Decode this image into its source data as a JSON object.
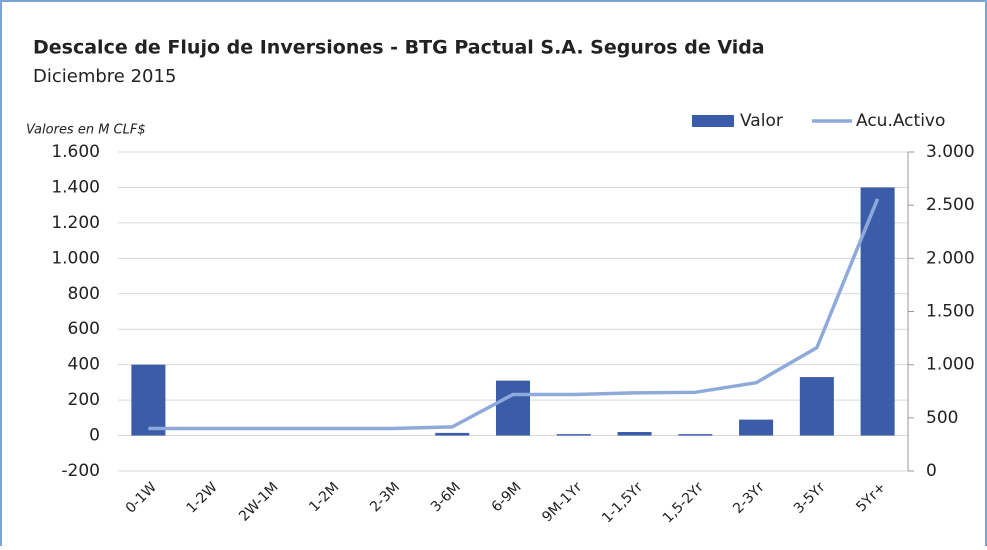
{
  "chart_data": {
    "type": "bar",
    "title": "Descalce de Flujo de Inversiones  - BTG Pactual S.A. Seguros de Vida",
    "subtitle": "Diciembre 2015",
    "y_axis_label": "Valores en M CLF$",
    "categories": [
      "0-1W",
      "1-2W",
      "2W-1M",
      "1-2M",
      "2-3M",
      "3-6M",
      "6-9M",
      "9M-1Yr",
      "1-1,5Yr",
      "1,5-2Yr",
      "2-3Yr",
      "3-5Yr",
      "5Yr+"
    ],
    "series": [
      {
        "name": "Valor",
        "type": "bar",
        "color": "#3b5ca8",
        "values": [
          400,
          0,
          0,
          0,
          0,
          15,
          310,
          8,
          20,
          8,
          90,
          330,
          1400
        ]
      },
      {
        "name": "Acu.Activo",
        "type": "line",
        "axis": "y2",
        "color": "#8eaadb",
        "values": [
          400,
          400,
          400,
          400,
          400,
          415,
          720,
          720,
          735,
          740,
          830,
          1160,
          2560
        ]
      }
    ],
    "ylim": [
      -200,
      1600
    ],
    "yticks": [
      -200,
      0,
      200,
      400,
      600,
      800,
      {
        "value": 1000,
        "label": "1.000"
      },
      {
        "value": 1200,
        "label": "1.200"
      },
      {
        "value": 1400,
        "label": "1.400"
      },
      {
        "value": 1600,
        "label": "1.600"
      }
    ],
    "y2lim": [
      0,
      3000
    ],
    "y2ticks": [
      0,
      500,
      {
        "value": 1000,
        "label": "1.000"
      },
      {
        "value": 1500,
        "label": "1.500"
      },
      {
        "value": 2000,
        "label": "2.000"
      },
      {
        "value": 2500,
        "label": "2.500"
      },
      {
        "value": 3000,
        "label": "3.000"
      }
    ],
    "grid": true,
    "legend": "top-right"
  }
}
